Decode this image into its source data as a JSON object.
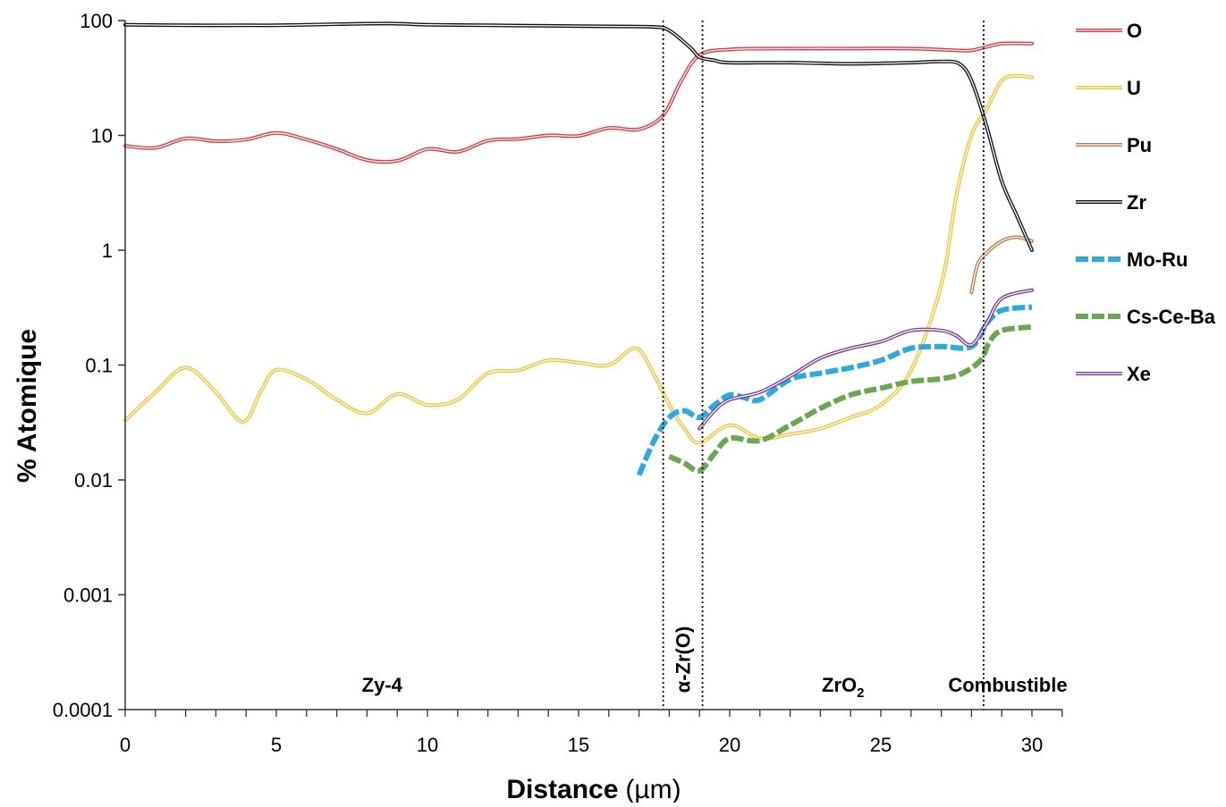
{
  "chart_data": {
    "type": "line",
    "xlabel": "Distance",
    "xlabel_unit": "(µm)",
    "ylabel": "% Atomique",
    "xlim": [
      0,
      30
    ],
    "ylim": [
      0.0001,
      100
    ],
    "yscale": "log",
    "grid": false,
    "legend_position": "right",
    "x_ticks": [
      0,
      5,
      10,
      15,
      20,
      25,
      30
    ],
    "x_tick_labels": [
      "0",
      "5",
      "10",
      "15",
      "20",
      "25",
      "30"
    ],
    "y_ticks": [
      0.0001,
      0.001,
      0.01,
      0.1,
      1,
      10,
      100
    ],
    "y_tick_labels": [
      "0.0001",
      "0.001",
      "0.01",
      "0.1",
      "1",
      "10",
      "100"
    ],
    "boundaries": [
      17.8,
      19.1,
      28.4
    ],
    "regions": [
      {
        "label": "Zy-4",
        "x": 8.5,
        "rotated": false
      },
      {
        "label": "α-Zr(O)",
        "x": 18.45,
        "rotated": true
      },
      {
        "label": "ZrO",
        "sub": "2",
        "x": 23.75,
        "rotated": false
      },
      {
        "label": "Combustible",
        "x": 29.2,
        "rotated": false
      }
    ],
    "series": [
      {
        "name": "O",
        "color": "#e8343a",
        "style": "double",
        "points": [
          [
            0,
            8.1
          ],
          [
            1,
            7.8
          ],
          [
            2,
            9.4
          ],
          [
            3,
            8.9
          ],
          [
            4,
            9.2
          ],
          [
            5,
            10.5
          ],
          [
            6,
            9.2
          ],
          [
            7,
            7.6
          ],
          [
            8,
            6.1
          ],
          [
            9,
            6.0
          ],
          [
            10,
            7.6
          ],
          [
            11,
            7.2
          ],
          [
            12,
            9.0
          ],
          [
            13,
            9.3
          ],
          [
            14,
            10.0
          ],
          [
            15,
            9.9
          ],
          [
            16,
            11.6
          ],
          [
            17,
            11.3
          ],
          [
            17.8,
            15
          ],
          [
            18.4,
            30
          ],
          [
            19,
            50
          ],
          [
            20,
            56
          ],
          [
            22,
            57
          ],
          [
            24,
            57
          ],
          [
            26,
            57
          ],
          [
            27.5,
            55
          ],
          [
            28,
            55
          ],
          [
            28.5,
            59
          ],
          [
            29,
            63
          ],
          [
            30,
            63
          ]
        ]
      },
      {
        "name": "U",
        "color": "#f4c22b",
        "style": "double",
        "points": [
          [
            0,
            0.033
          ],
          [
            1,
            0.058
          ],
          [
            2,
            0.095
          ],
          [
            3,
            0.058
          ],
          [
            3.9,
            0.032
          ],
          [
            4.5,
            0.06
          ],
          [
            5,
            0.091
          ],
          [
            6,
            0.075
          ],
          [
            7,
            0.05
          ],
          [
            8,
            0.038
          ],
          [
            9,
            0.056
          ],
          [
            10,
            0.045
          ],
          [
            11,
            0.05
          ],
          [
            12,
            0.085
          ],
          [
            13,
            0.09
          ],
          [
            14,
            0.11
          ],
          [
            15,
            0.105
          ],
          [
            16,
            0.1
          ],
          [
            16.9,
            0.14
          ],
          [
            17.5,
            0.082
          ],
          [
            18,
            0.045
          ],
          [
            18.5,
            0.028
          ],
          [
            19,
            0.021
          ],
          [
            20,
            0.03
          ],
          [
            21,
            0.023
          ],
          [
            22,
            0.025
          ],
          [
            23,
            0.028
          ],
          [
            24,
            0.035
          ],
          [
            25,
            0.045
          ],
          [
            26,
            0.09
          ],
          [
            27,
            0.5
          ],
          [
            27.5,
            3
          ],
          [
            28,
            10
          ],
          [
            28.5,
            17
          ],
          [
            29,
            30
          ],
          [
            29.5,
            33
          ],
          [
            30,
            32
          ]
        ]
      },
      {
        "name": "Pu",
        "color": "#c8784c",
        "style": "double",
        "points": [
          [
            28,
            0.43
          ],
          [
            28.2,
            0.75
          ],
          [
            28.5,
            0.95
          ],
          [
            29,
            1.2
          ],
          [
            29.5,
            1.3
          ],
          [
            30,
            1.2
          ]
        ]
      },
      {
        "name": "Zr",
        "color": "#111111",
        "style": "double",
        "points": [
          [
            0,
            92
          ],
          [
            2,
            91
          ],
          [
            4,
            91
          ],
          [
            5,
            91
          ],
          [
            6,
            92
          ],
          [
            8,
            94
          ],
          [
            9,
            94
          ],
          [
            10,
            92
          ],
          [
            12,
            91
          ],
          [
            14,
            90
          ],
          [
            16,
            89
          ],
          [
            17.5,
            88
          ],
          [
            18,
            82
          ],
          [
            18.7,
            58
          ],
          [
            19,
            48
          ],
          [
            19.5,
            45
          ],
          [
            20,
            43
          ],
          [
            22,
            43
          ],
          [
            24,
            42
          ],
          [
            26,
            43
          ],
          [
            27,
            44
          ],
          [
            27.6,
            42
          ],
          [
            28,
            30
          ],
          [
            28.5,
            12
          ],
          [
            29,
            4
          ],
          [
            29.5,
            2
          ],
          [
            30,
            1.0
          ]
        ]
      },
      {
        "name": "Mo-Ru",
        "color": "#2aaae4",
        "style": "dashed",
        "points": [
          [
            17,
            0.011
          ],
          [
            17.5,
            0.022
          ],
          [
            18,
            0.035
          ],
          [
            18.5,
            0.04
          ],
          [
            19,
            0.035
          ],
          [
            19.5,
            0.045
          ],
          [
            20,
            0.055
          ],
          [
            20.5,
            0.052
          ],
          [
            21,
            0.05
          ],
          [
            22,
            0.075
          ],
          [
            23,
            0.085
          ],
          [
            24,
            0.095
          ],
          [
            25,
            0.11
          ],
          [
            26,
            0.14
          ],
          [
            27,
            0.145
          ],
          [
            28,
            0.145
          ],
          [
            28.5,
            0.23
          ],
          [
            29,
            0.3
          ],
          [
            30,
            0.32
          ]
        ]
      },
      {
        "name": "Cs-Ce-Ba",
        "color": "#6aa84f",
        "style": "dashed",
        "points": [
          [
            18,
            0.016
          ],
          [
            18.5,
            0.014
          ],
          [
            19,
            0.012
          ],
          [
            19.5,
            0.017
          ],
          [
            20,
            0.023
          ],
          [
            21,
            0.022
          ],
          [
            22,
            0.03
          ],
          [
            23,
            0.042
          ],
          [
            24,
            0.055
          ],
          [
            25,
            0.063
          ],
          [
            26,
            0.072
          ],
          [
            27,
            0.076
          ],
          [
            27.7,
            0.085
          ],
          [
            28.3,
            0.11
          ],
          [
            28.6,
            0.16
          ],
          [
            29,
            0.2
          ],
          [
            30,
            0.215
          ]
        ]
      },
      {
        "name": "Xe",
        "color": "#7b3a9a",
        "style": "double",
        "points": [
          [
            19,
            0.028
          ],
          [
            19.5,
            0.04
          ],
          [
            20,
            0.05
          ],
          [
            21,
            0.058
          ],
          [
            22,
            0.08
          ],
          [
            23,
            0.115
          ],
          [
            24,
            0.14
          ],
          [
            25,
            0.16
          ],
          [
            26,
            0.2
          ],
          [
            27,
            0.2
          ],
          [
            27.5,
            0.18
          ],
          [
            28,
            0.15
          ],
          [
            28.5,
            0.23
          ],
          [
            29,
            0.38
          ],
          [
            30,
            0.45
          ]
        ]
      }
    ]
  }
}
